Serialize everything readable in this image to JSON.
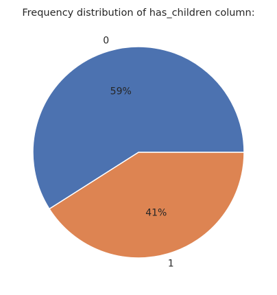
{
  "chart_data": {
    "type": "pie",
    "title": "Frequency distribution of has_children column:",
    "categories": [
      "0",
      "1"
    ],
    "values": [
      59,
      41
    ],
    "value_labels": [
      "59%",
      "41%"
    ],
    "colors": [
      "#4c72b0",
      "#dd8452"
    ],
    "start_angle_deg": 0,
    "direction": "counterclockwise",
    "legend": "none"
  }
}
